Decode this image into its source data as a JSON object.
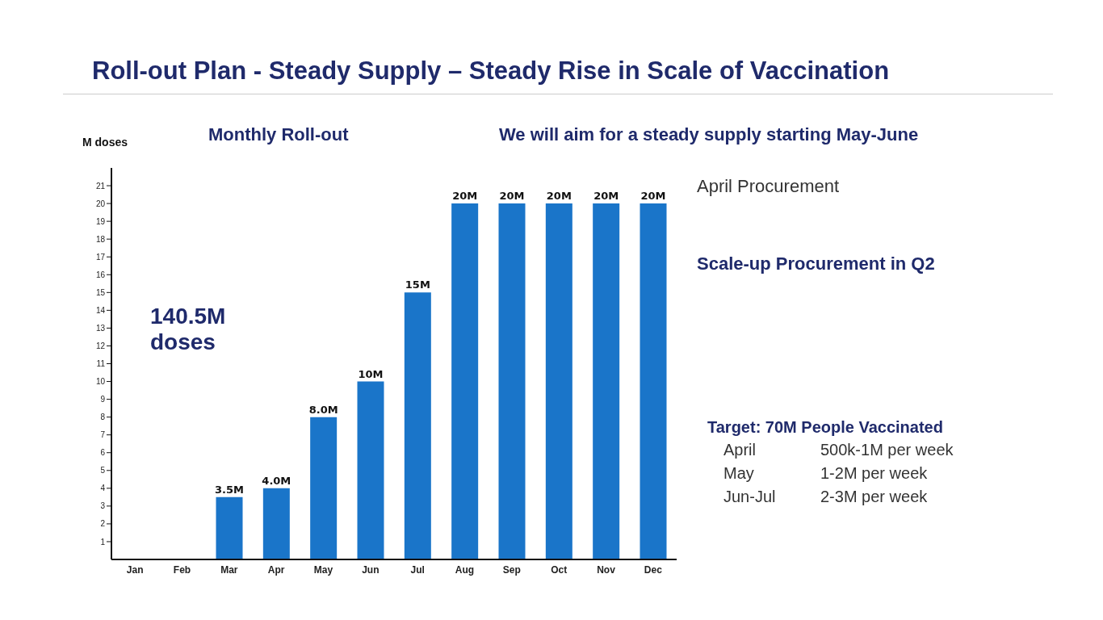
{
  "chart_data": {
    "type": "bar",
    "title": "Roll-out Plan - Steady Supply – Steady Rise in Scale of Vaccination",
    "ylabel": "M doses",
    "categories": [
      "Jan",
      "Feb",
      "Mar",
      "Apr",
      "May",
      "Jun",
      "Jul",
      "Aug",
      "Sep",
      "Oct",
      "Nov",
      "Dec"
    ],
    "values": [
      0,
      0,
      3.5,
      4.0,
      8.0,
      10,
      15,
      20,
      20,
      20,
      20,
      20
    ],
    "value_labels": [
      null,
      null,
      "3.5M",
      "4.0M",
      "8.0M",
      "10M",
      "15M",
      "20M",
      "20M",
      "20M",
      "20M",
      "20M"
    ],
    "color": "#1a75c9",
    "ylim": [
      0,
      22
    ],
    "yticks": [
      1,
      2,
      3,
      4,
      5,
      6,
      7,
      8,
      9,
      10,
      11,
      12,
      13,
      14,
      15,
      16,
      17,
      18,
      19,
      20,
      21
    ],
    "grid": false,
    "legend": false,
    "annotations": [
      "Monthly Roll-out",
      "We will aim for a steady supply starting May-June",
      "140.5M doses",
      "April Procurement",
      "Scale-up Procurement in Q2",
      "Target: 70M People Vaccinated",
      "April",
      "500k-1M per week",
      "May",
      "1-2M per week",
      "Jun-Jul",
      "2-3M per week"
    ]
  }
}
